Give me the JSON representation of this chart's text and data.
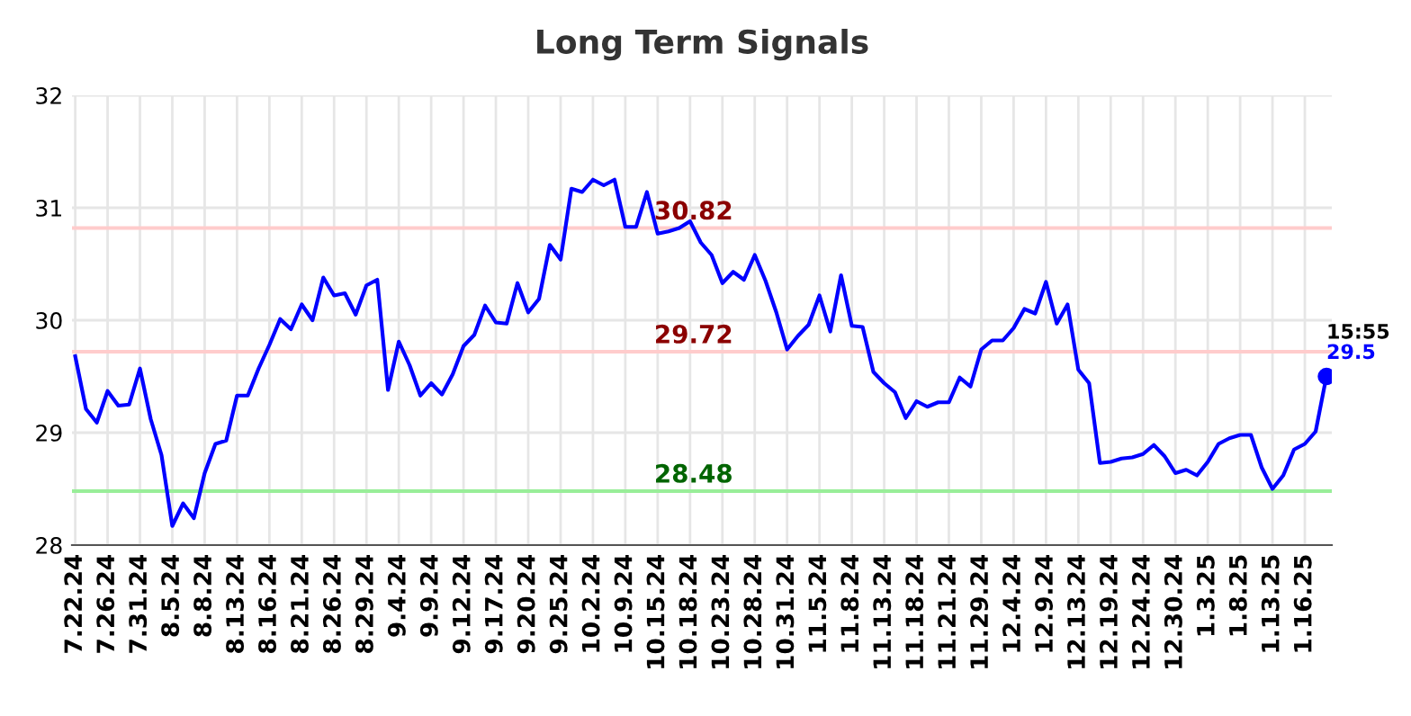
{
  "chart_data": {
    "type": "line",
    "title": "Long Term Signals",
    "categories": [
      "7.22.24",
      null,
      null,
      "7.26.24",
      null,
      null,
      "7.31.24",
      null,
      null,
      "8.5.24",
      null,
      null,
      "8.8.24",
      null,
      null,
      "8.13.24",
      null,
      null,
      "8.16.24",
      null,
      null,
      "8.21.24",
      null,
      null,
      "8.26.24",
      null,
      null,
      "8.29.24",
      null,
      null,
      "9.4.24",
      null,
      null,
      "9.9.24",
      null,
      null,
      "9.12.24",
      null,
      null,
      "9.17.24",
      null,
      null,
      "9.20.24",
      null,
      null,
      "9.25.24",
      null,
      null,
      "10.2.24",
      null,
      null,
      "10.9.24",
      null,
      null,
      "10.15.24",
      null,
      null,
      "10.18.24",
      null,
      null,
      "10.23.24",
      null,
      null,
      "10.28.24",
      null,
      null,
      "10.31.24",
      null,
      null,
      "11.5.24",
      null,
      null,
      "11.8.24",
      null,
      null,
      "11.13.24",
      null,
      null,
      "11.18.24",
      null,
      null,
      "11.21.24",
      null,
      null,
      "11.29.24",
      null,
      null,
      "12.4.24",
      null,
      null,
      "12.9.24",
      null,
      null,
      "12.13.24",
      null,
      null,
      "12.19.24",
      null,
      null,
      "12.24.24",
      null,
      null,
      "12.30.24",
      null,
      null,
      "1.3.25",
      null,
      null,
      "1.8.25",
      null,
      null,
      "1.13.25",
      null,
      null,
      "1.16.25",
      null,
      null
    ],
    "series": [
      {
        "color": "#0000ff",
        "values": [
          29.68,
          29.21,
          29.09,
          29.37,
          29.24,
          29.25,
          29.57,
          29.12,
          28.8,
          28.17,
          28.37,
          28.24,
          28.64,
          28.9,
          28.93,
          29.33,
          29.33,
          29.57,
          29.78,
          30.01,
          29.92,
          30.14,
          30.0,
          30.38,
          30.22,
          30.24,
          30.05,
          30.31,
          30.36,
          29.38,
          29.81,
          29.6,
          29.33,
          29.44,
          29.34,
          29.52,
          29.77,
          29.87,
          30.13,
          29.98,
          29.97,
          30.33,
          30.07,
          30.19,
          30.67,
          30.54,
          31.17,
          31.14,
          31.25,
          31.2,
          31.25,
          30.83,
          30.83,
          31.14,
          30.77,
          30.79,
          30.82,
          30.88,
          30.69,
          30.58,
          30.33,
          30.43,
          30.36,
          30.58,
          30.35,
          30.07,
          29.74,
          29.86,
          29.96,
          30.22,
          29.9,
          30.4,
          29.95,
          29.94,
          29.54,
          29.44,
          29.36,
          29.13,
          29.28,
          29.23,
          29.27,
          29.27,
          29.49,
          29.41,
          29.74,
          29.82,
          29.82,
          29.93,
          30.1,
          30.06,
          30.34,
          29.97,
          30.14,
          29.56,
          29.44,
          28.73,
          28.74,
          28.77,
          28.78,
          28.81,
          28.89,
          28.79,
          28.64,
          28.67,
          28.62,
          28.74,
          28.9,
          28.95,
          28.98,
          28.98,
          28.69,
          28.5,
          28.62,
          28.85,
          28.9,
          29.01,
          29.5
        ]
      }
    ],
    "ylim": [
      28,
      32
    ],
    "yticks": [
      28,
      29,
      30,
      31,
      32
    ],
    "grid": true,
    "legend": false,
    "marker": "none",
    "line_style": "solid",
    "ref_lines": [
      {
        "axis": "y",
        "value": 30.82,
        "label": "30.82",
        "color": "#ffcccc"
      },
      {
        "axis": "y",
        "value": 29.72,
        "label": "29.72",
        "color": "#ffcccc"
      },
      {
        "axis": "y",
        "value": 28.48,
        "label": "28.48",
        "color": "#99ee99"
      }
    ],
    "annotations": [
      "15:55",
      "29.5"
    ]
  }
}
